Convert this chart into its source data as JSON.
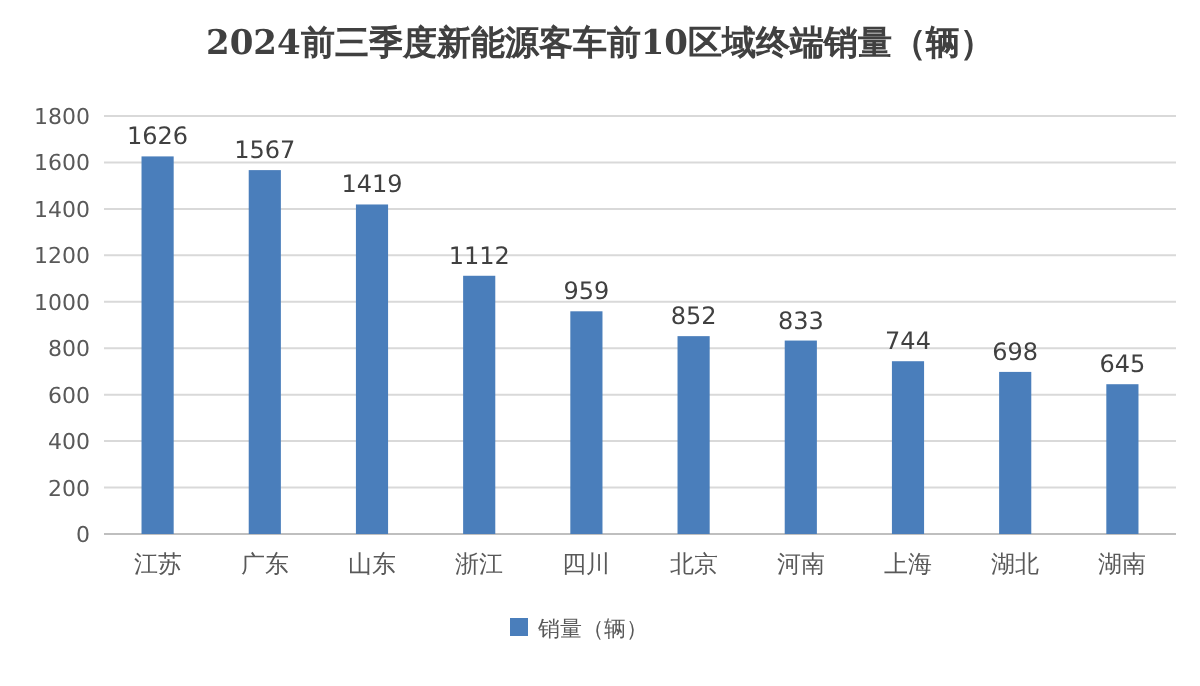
{
  "chart_data": {
    "type": "bar",
    "title": "2024前三季度新能源客车前10区域终端销量（辆）",
    "categories": [
      "江苏",
      "广东",
      "山东",
      "浙江",
      "四川",
      "北京",
      "河南",
      "上海",
      "湖北",
      "湖南"
    ],
    "series": [
      {
        "name": "销量（辆）",
        "color": "#4a7ebb",
        "values": [
          1626,
          1567,
          1419,
          1112,
          959,
          852,
          833,
          744,
          698,
          645
        ]
      }
    ],
    "ylim": [
      0,
      1800
    ],
    "yticks": [
      0,
      200,
      400,
      600,
      800,
      1000,
      1200,
      1400,
      1600,
      1800
    ],
    "grid": "y",
    "legend": "bottom",
    "data_labels": true
  }
}
